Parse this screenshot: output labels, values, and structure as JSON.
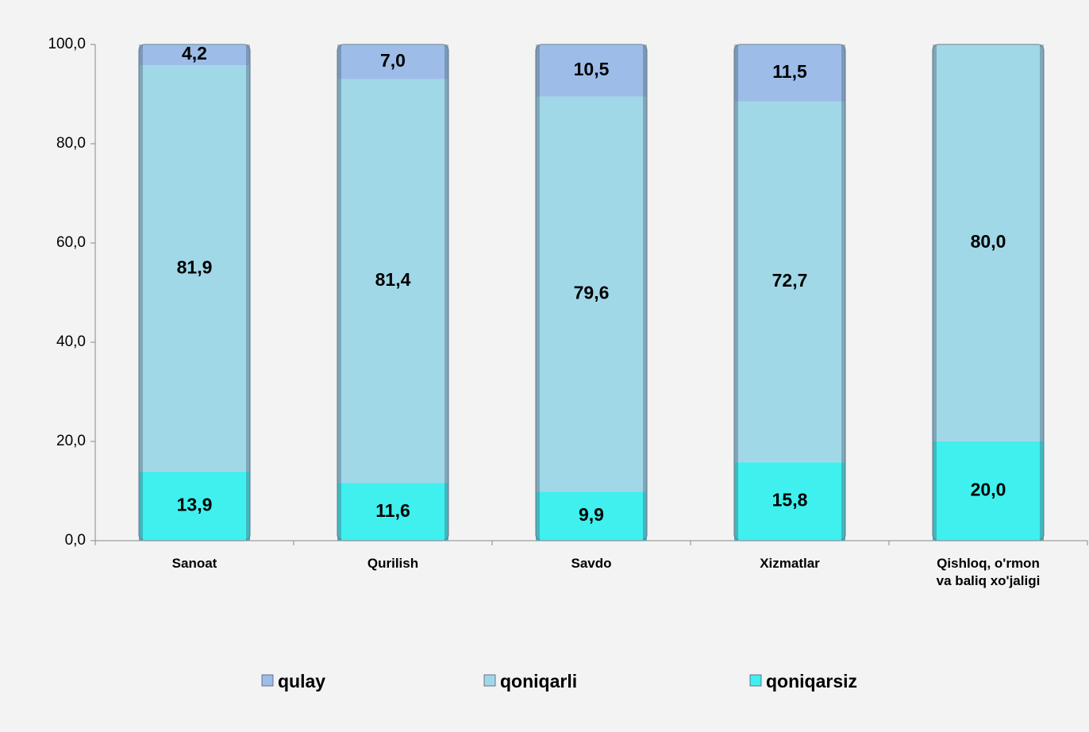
{
  "chart_data": {
    "type": "stacked_bar",
    "categories": [
      "Sanoat",
      "Qurilish",
      "Savdo",
      "Xizmatlar",
      "Qishloq, o'rmon va baliq xo'jaligi"
    ],
    "series": [
      {
        "name": "qoniqarsiz",
        "color": "#3ff0ee",
        "values": [
          13.9,
          11.6,
          9.9,
          15.8,
          20.0
        ],
        "value_labels": [
          "13,9",
          "11,6",
          "9,9",
          "15,8",
          "20,0"
        ]
      },
      {
        "name": "qoniqarli",
        "color": "#a1d8e8",
        "values": [
          81.9,
          81.4,
          79.6,
          72.7,
          80.0
        ],
        "value_labels": [
          "81,9",
          "81,4",
          "79,6",
          "72,7",
          "80,0"
        ]
      },
      {
        "name": "qulay",
        "color": "#9dbde8",
        "values": [
          4.2,
          7.0,
          10.5,
          11.5,
          null
        ],
        "value_labels": [
          "4,2",
          "7,0",
          "10,5",
          "11,5",
          null
        ]
      }
    ],
    "legend_order": [
      2,
      1,
      0
    ],
    "ylim": [
      0,
      100
    ],
    "yticks": [
      {
        "value": 0,
        "label": "0,0"
      },
      {
        "value": 20,
        "label": "20,0"
      },
      {
        "value": 40,
        "label": "40,0"
      },
      {
        "value": 60,
        "label": "60,0"
      },
      {
        "value": 80,
        "label": "80,0"
      },
      {
        "value": 100,
        "label": "100,0"
      }
    ],
    "grid": false
  }
}
